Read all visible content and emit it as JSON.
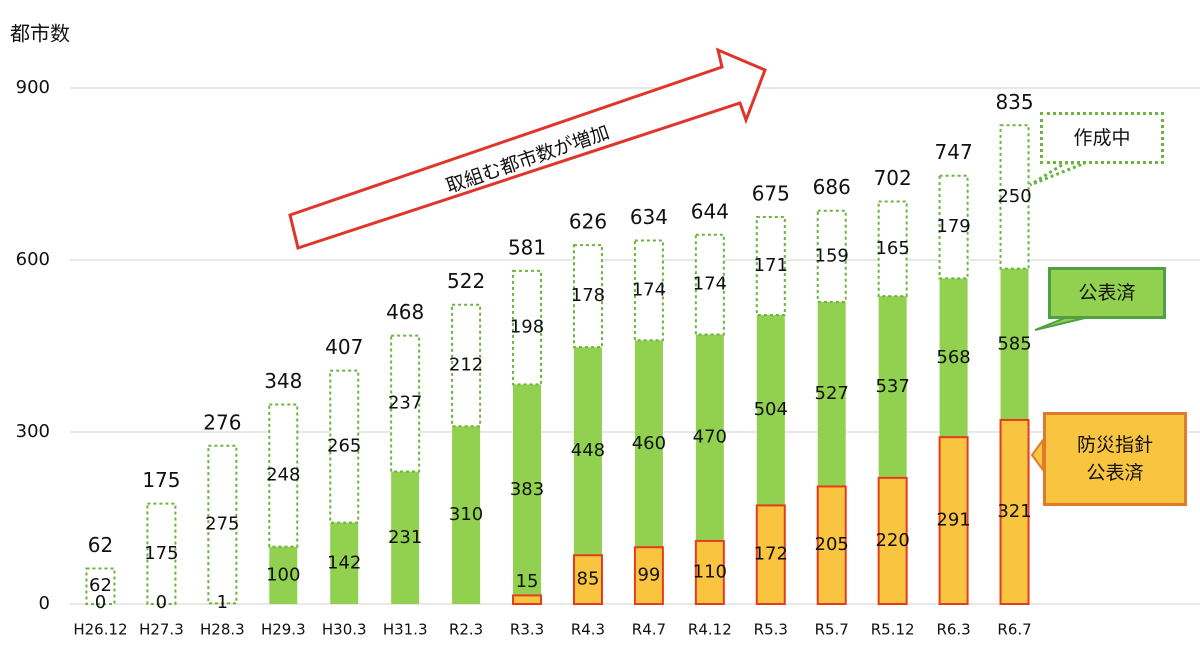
{
  "chart_data": {
    "type": "bar",
    "y_axis_title": "都市数",
    "annotation": "取組む都市数が増加",
    "categories": [
      "H26.12",
      "H27.3",
      "H28.3",
      "H29.3",
      "H30.3",
      "H31.3",
      "R2.3",
      "R3.3",
      "R4.3",
      "R4.7",
      "R4.12",
      "R5.3",
      "R5.7",
      "R5.12",
      "R6.3",
      "R6.7"
    ],
    "series": [
      {
        "name": "公表済",
        "color": "#92d050",
        "values": [
          0,
          0,
          1,
          100,
          142,
          231,
          310,
          383,
          448,
          460,
          470,
          504,
          527,
          537,
          568,
          585
        ]
      },
      {
        "name": "作成中",
        "color": "#ffffff",
        "values": [
          62,
          175,
          275,
          248,
          265,
          237,
          212,
          198,
          178,
          174,
          174,
          171,
          159,
          165,
          179,
          250
        ]
      },
      {
        "name": "防災指針\n公表済",
        "color": "#f9c440",
        "values": [
          null,
          null,
          null,
          null,
          null,
          null,
          null,
          15,
          85,
          99,
          110,
          172,
          205,
          220,
          291,
          321
        ]
      }
    ],
    "totals": [
      62,
      175,
      276,
      348,
      407,
      468,
      522,
      581,
      626,
      634,
      644,
      675,
      686,
      702,
      747,
      835
    ],
    "ylim": [
      0,
      900
    ],
    "yticks": [
      0,
      300,
      600,
      900
    ],
    "grid": true
  }
}
